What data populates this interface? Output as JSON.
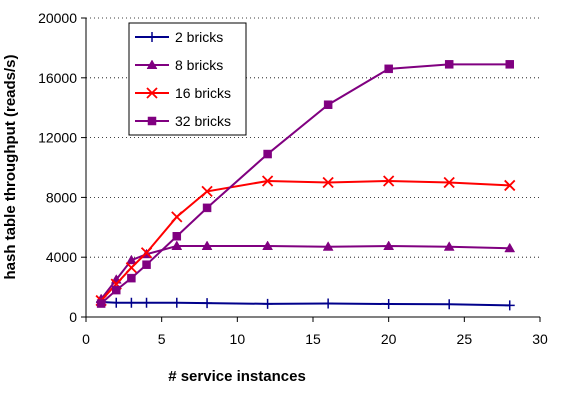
{
  "chart_data": {
    "type": "line",
    "title": "",
    "xlabel": "# service instances",
    "ylabel": "hash table throughput (reads/s)",
    "xlim": [
      0,
      30
    ],
    "ylim": [
      0,
      20000
    ],
    "xticks": [
      "0",
      "5",
      "10",
      "15",
      "20",
      "25",
      "30"
    ],
    "yticks": [
      "0",
      "4000",
      "8000",
      "12000",
      "16000",
      "20000"
    ],
    "grid": "horizontal dotted",
    "legend_position": "top-left",
    "series": [
      {
        "name": "2 bricks",
        "color": "#00008B",
        "marker": "plus",
        "x": [
          1,
          2,
          3,
          4,
          6,
          8,
          12,
          16,
          20,
          24,
          28
        ],
        "y": [
          1000,
          950,
          950,
          950,
          950,
          930,
          880,
          900,
          870,
          850,
          780
        ]
      },
      {
        "name": "8 bricks",
        "color": "#800080",
        "marker": "triangle",
        "x": [
          1,
          2,
          3,
          4,
          6,
          8,
          12,
          16,
          20,
          24,
          28
        ],
        "y": [
          1200,
          2500,
          3800,
          4200,
          4750,
          4750,
          4750,
          4700,
          4750,
          4700,
          4600
        ]
      },
      {
        "name": "16 bricks",
        "color": "#FF0000",
        "marker": "x",
        "x": [
          1,
          2,
          3,
          4,
          6,
          8,
          12,
          16,
          20,
          24,
          28
        ],
        "y": [
          1100,
          2200,
          3300,
          4300,
          6700,
          8400,
          9100,
          9000,
          9100,
          9000,
          8800
        ]
      },
      {
        "name": "32 bricks",
        "color": "#800080",
        "marker": "square",
        "x": [
          1,
          2,
          3,
          4,
          6,
          8,
          12,
          16,
          20,
          24,
          28
        ],
        "y": [
          900,
          1800,
          2600,
          3500,
          5400,
          7300,
          10900,
          14200,
          16600,
          16900,
          16900
        ]
      }
    ]
  }
}
